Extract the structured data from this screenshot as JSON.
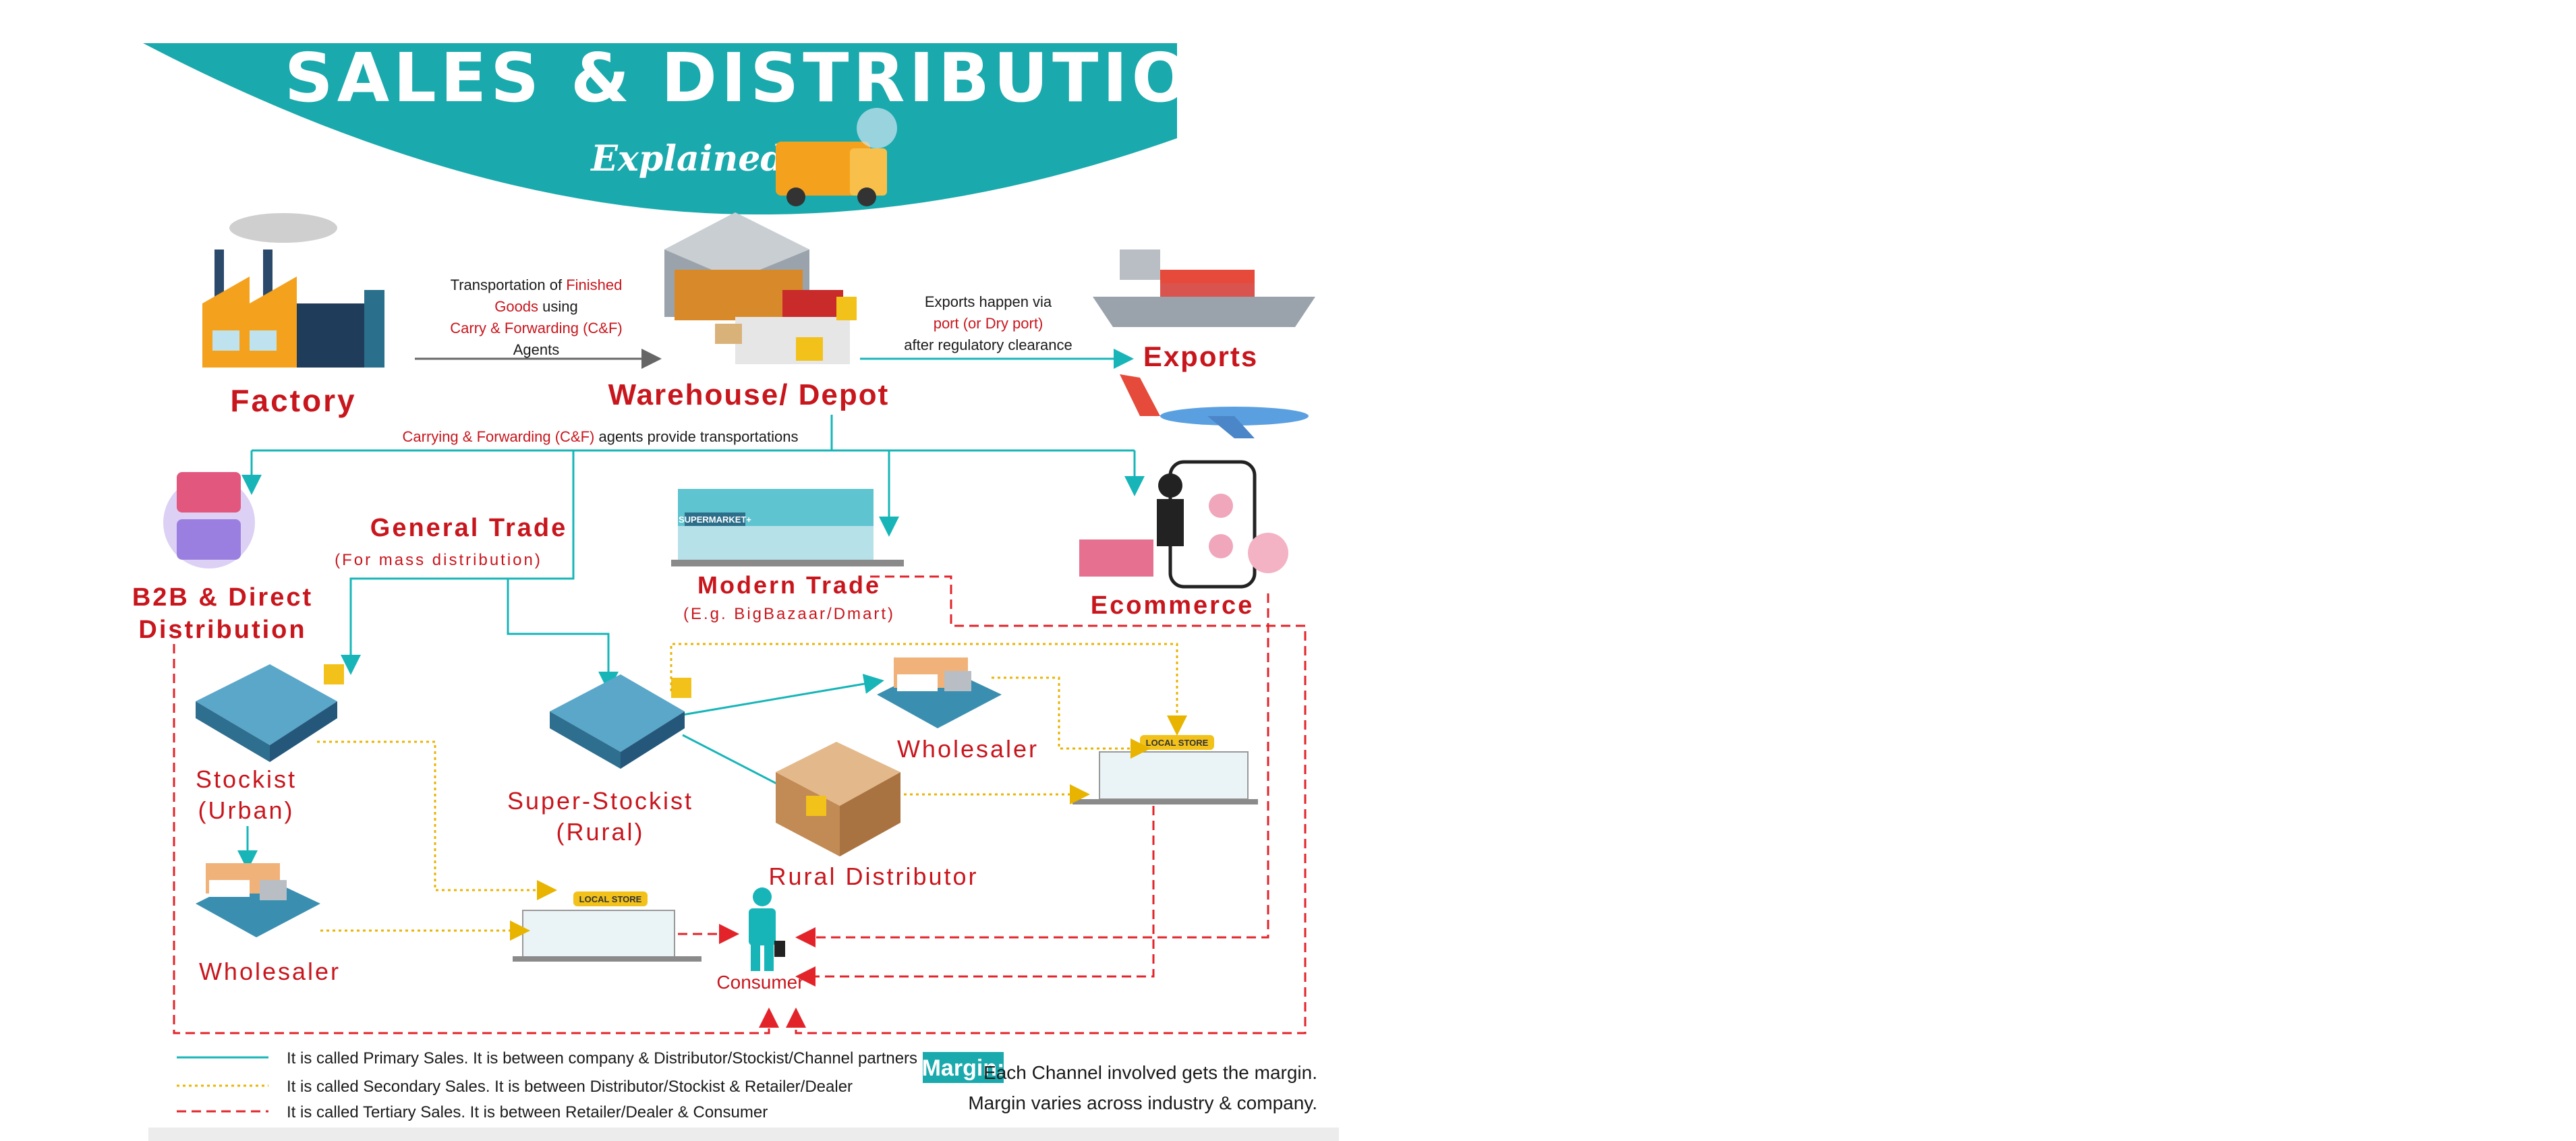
{
  "header": {
    "title": "SALES & DISTRIBUTION",
    "subtitle": "Explained"
  },
  "nodes": {
    "factory": "Factory",
    "warehouse": "Warehouse/ Depot",
    "exports": "Exports",
    "b2b_line1": "B2B & Direct",
    "b2b_line2": "Distribution",
    "general_trade": "General Trade",
    "general_trade_note": "(For mass distribution)",
    "modern_trade": "Modern Trade",
    "modern_trade_note": "(E.g. BigBazaar/Dmart)",
    "ecommerce": "Ecommerce",
    "stockist_line1": "Stockist",
    "stockist_line2": "(Urban)",
    "super_stockist_line1": "Super-Stockist",
    "super_stockist_line2": "(Rural)",
    "wholesaler_right": "Wholesaler",
    "rural_distributor": "Rural Distributor",
    "wholesaler_left": "Wholesaler",
    "consumer": "Consumer",
    "local_store_sign": "LOCAL STORE",
    "supermarket_sign": "SUPERMARKET+"
  },
  "notes": {
    "transport_l1_a": "Transportation of ",
    "transport_l1_b": "Finished",
    "transport_l2_a": "Goods",
    "transport_l2_b": " using",
    "transport_l3": "Carry & Forwarding (C&F)",
    "transport_l4": "Agents",
    "exports_l1": "Exports happen via",
    "exports_l2": "port (or Dry port)",
    "exports_l3": "after regulatory clearance",
    "cf_a": "Carrying & Forwarding (C&F)",
    "cf_b": " agents provide transportations"
  },
  "legend": {
    "primary": "It is called Primary Sales. It is between company & Distributor/Stockist/Channel partners",
    "secondary": "It is called Secondary Sales. It is between Distributor/Stockist & Retailer/Dealer",
    "tertiary": "It is called Tertiary Sales. It is between Retailer/Dealer & Consumer"
  },
  "margin": {
    "label": "Margin:",
    "line1": "Each Channel involved gets the margin.",
    "line2": "Margin varies across industry & company."
  },
  "colors": {
    "teal": "#1aa9ac",
    "red": "#c8161d",
    "dotted_yellow": "#e8b400",
    "primary_line": "#17b5b8",
    "tertiary_line": "#e3232a"
  }
}
